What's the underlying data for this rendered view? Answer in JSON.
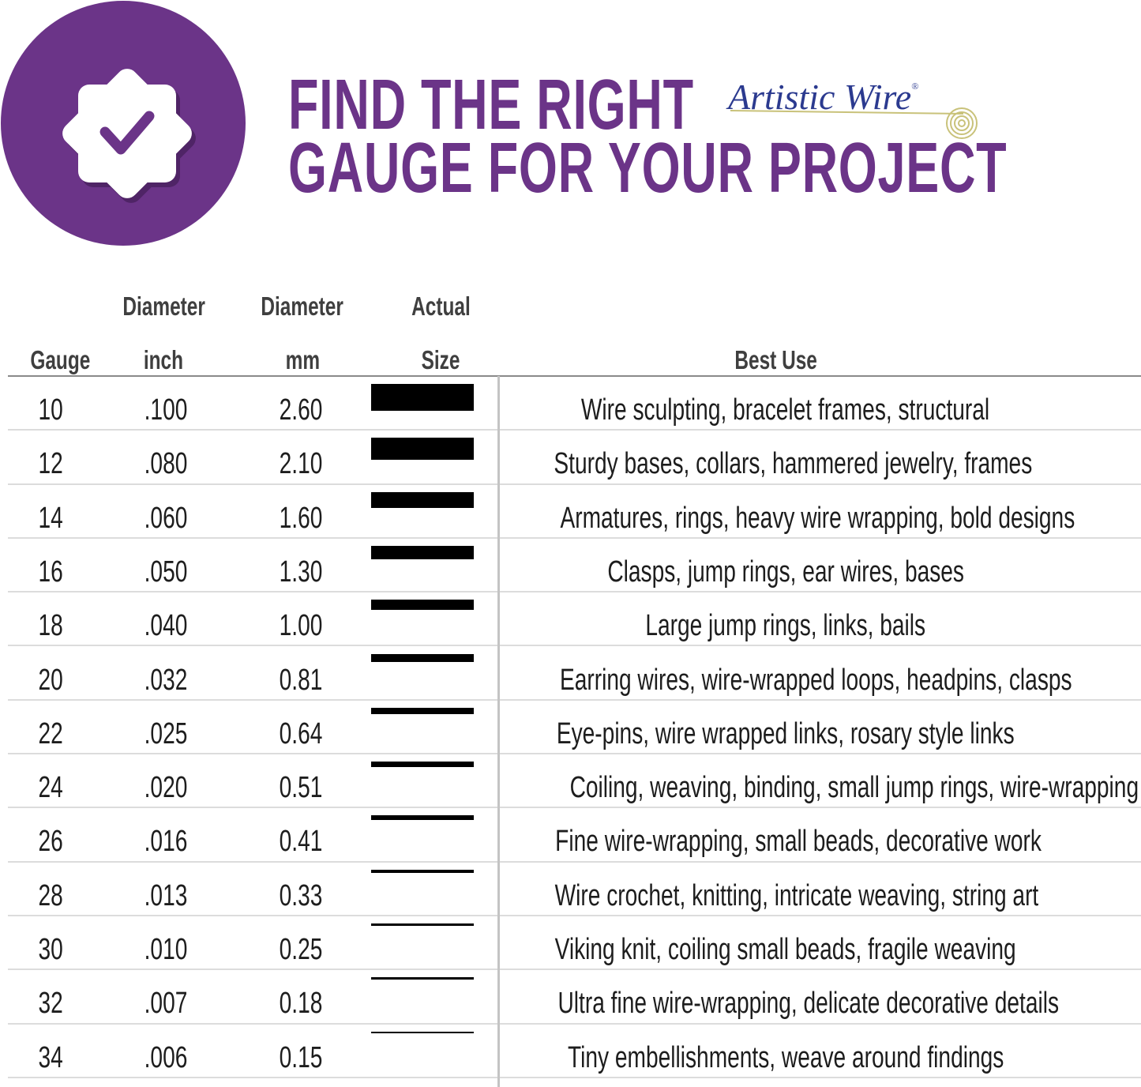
{
  "header": {
    "title_line1": "FIND THE RIGHT",
    "title_line2": "GAUGE FOR YOUR PROJECT",
    "brand_logo": "Artistic Wire",
    "brand_mark": "®",
    "badge_icon": "verified-badge-checkmark-icon"
  },
  "colors": {
    "brand_purple": "#6b3488",
    "logo_blue": "#2b3a8f",
    "logo_spiral": "#c9c27a",
    "wire": "#000000"
  },
  "table": {
    "columns": {
      "gauge": "Gauge",
      "inch_top": "Diameter",
      "inch_bottom": "inch",
      "mm_top": "Diameter",
      "mm_bottom": "mm",
      "size_top": "Actual",
      "size_bottom": "Size",
      "use": "Best Use"
    },
    "rows": [
      {
        "gauge": "10",
        "inch": ".100",
        "mm": "2.60",
        "use": "Wire sculpting, bracelet frames, structural"
      },
      {
        "gauge": "12",
        "inch": ".080",
        "mm": "2.10",
        "use": "Sturdy bases, collars, hammered jewelry, frames"
      },
      {
        "gauge": "14",
        "inch": ".060",
        "mm": "1.60",
        "use": "Armatures, rings, heavy wire wrapping, bold designs"
      },
      {
        "gauge": "16",
        "inch": ".050",
        "mm": "1.30",
        "use": "Clasps, jump rings, ear wires, bases"
      },
      {
        "gauge": "18",
        "inch": ".040",
        "mm": "1.00",
        "use": "Large jump rings, links, bails"
      },
      {
        "gauge": "20",
        "inch": ".032",
        "mm": "0.81",
        "use": "Earring wires, wire-wrapped loops, headpins, clasps"
      },
      {
        "gauge": "22",
        "inch": ".025",
        "mm": "0.64",
        "use": "Eye-pins, wire wrapped links, rosary style links"
      },
      {
        "gauge": "24",
        "inch": ".020",
        "mm": "0.51",
        "use": "Coiling, weaving, binding, small jump rings, wire-wrapping"
      },
      {
        "gauge": "26",
        "inch": ".016",
        "mm": "0.41",
        "use": "Fine wire-wrapping, small beads, decorative work"
      },
      {
        "gauge": "28",
        "inch": ".013",
        "mm": "0.33",
        "use": "Wire crochet, knitting, intricate weaving, string art"
      },
      {
        "gauge": "30",
        "inch": ".010",
        "mm": "0.25",
        "use": "Viking knit, coiling small beads, fragile weaving"
      },
      {
        "gauge": "32",
        "inch": ".007",
        "mm": "0.18",
        "use": "Ultra fine wire-wrapping, delicate decorative details"
      },
      {
        "gauge": "34",
        "inch": ".006",
        "mm": "0.15",
        "use": "Tiny embellishments, weave around findings"
      }
    ]
  }
}
